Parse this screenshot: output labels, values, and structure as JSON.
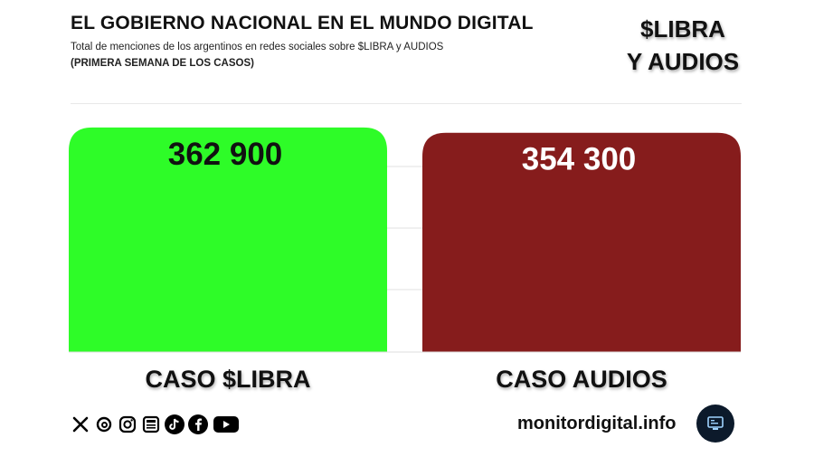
{
  "header": {
    "title": "EL GOBIERNO NACIONAL EN EL MUNDO DIGITAL",
    "subtitle": "Total de menciones de los argentinos en redes sociales sobre $LIBRA y AUDIOS",
    "note": "(PRIMERA SEMANA DE LOS CASOS)",
    "badge_line1": "$LIBRA",
    "badge_line2": "Y AUDIOS"
  },
  "chart_data": {
    "type": "bar",
    "title": "EL GOBIERNO NACIONAL EN EL MUNDO DIGITAL",
    "subtitle": "Total de menciones de los argentinos en redes sociales sobre $LIBRA y AUDIOS",
    "categories": [
      "CASO $LIBRA",
      "CASO AUDIOS"
    ],
    "values": [
      362900,
      354300
    ],
    "data_labels": [
      "362 900",
      "354 300"
    ],
    "colors": [
      "#2efc28",
      "#861c1c"
    ],
    "label_colors": [
      "#111111",
      "#ffffff"
    ],
    "xlabel": "",
    "ylabel": "",
    "ylim": [
      0,
      370000
    ],
    "grid": true
  },
  "footer": {
    "site": "monitordigital.info",
    "social_icons": [
      "x-icon",
      "threads-icon",
      "instagram-icon",
      "news-icon",
      "tiktok-icon",
      "facebook-icon",
      "youtube-icon"
    ]
  }
}
